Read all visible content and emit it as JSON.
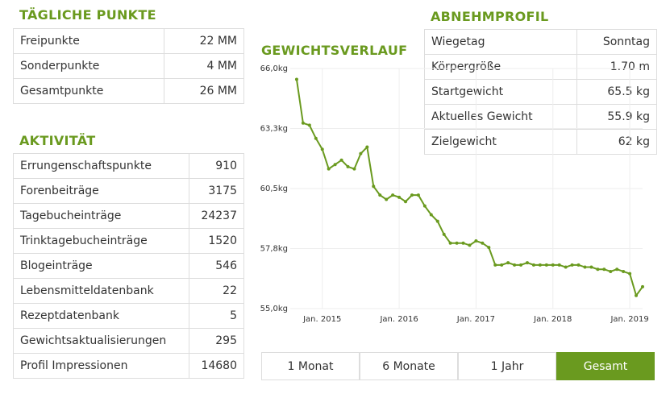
{
  "daily_points": {
    "title": "TÄGLICHE PUNKTE",
    "rows": [
      [
        "Freipunkte",
        "22 MM"
      ],
      [
        "Sonderpunkte",
        "4 MM"
      ],
      [
        "Gesamtpunkte",
        "26 MM"
      ]
    ]
  },
  "activity": {
    "title": "AKTIVITÄT",
    "rows": [
      [
        "Errungenschaftspunkte",
        "910"
      ],
      [
        "Forenbeiträge",
        "3175"
      ],
      [
        "Tagebucheinträge",
        "24237"
      ],
      [
        "Trinktagebucheinträge",
        "1520"
      ],
      [
        "Blogeinträge",
        "546"
      ],
      [
        "Lebensmitteldatenbank",
        "22"
      ],
      [
        "Rezeptdatenbank",
        "5"
      ],
      [
        "Gewichtsaktualisierungen",
        "295"
      ],
      [
        "Profil Impressionen",
        "14680"
      ]
    ]
  },
  "profile": {
    "title": "ABNEHMPROFIL",
    "rows": [
      [
        "Wiegetag",
        "Sonntag"
      ],
      [
        "Körpergröße",
        "1.70 m"
      ],
      [
        "Startgewicht",
        "65.5 kg"
      ],
      [
        "Aktuelles Gewicht",
        "55.9 kg"
      ],
      [
        "Zielgewicht",
        "62 kg"
      ]
    ]
  },
  "chart_data": {
    "type": "line",
    "title": "GEWICHTSVERLAUF",
    "color": "#6a9a1f",
    "grid": true,
    "x": [
      "2014-09",
      "2014-10",
      "2014-11",
      "2014-12",
      "2015-01",
      "2015-02",
      "2015-03",
      "2015-04",
      "2015-05",
      "2015-06",
      "2015-07",
      "2015-08",
      "2015-09",
      "2015-10",
      "2015-11",
      "2015-12",
      "2016-01",
      "2016-02",
      "2016-03",
      "2016-04",
      "2016-05",
      "2016-06",
      "2016-07",
      "2016-08",
      "2016-09",
      "2016-10",
      "2016-11",
      "2016-12",
      "2017-01",
      "2017-02",
      "2017-03",
      "2017-04",
      "2017-05",
      "2017-06",
      "2017-07",
      "2017-08",
      "2017-09",
      "2017-10",
      "2017-11",
      "2017-12",
      "2018-01",
      "2018-02",
      "2018-03",
      "2018-04",
      "2018-05",
      "2018-06",
      "2018-07",
      "2018-08",
      "2018-09",
      "2018-10",
      "2018-11",
      "2018-12",
      "2019-01",
      "2019-02",
      "2019-03"
    ],
    "values": [
      65.5,
      63.5,
      63.4,
      62.8,
      62.3,
      61.4,
      61.6,
      61.8,
      61.5,
      61.4,
      62.1,
      62.4,
      60.6,
      60.2,
      60.0,
      60.2,
      60.1,
      59.9,
      60.2,
      60.2,
      59.7,
      59.3,
      59.0,
      58.4,
      58.0,
      58.0,
      58.0,
      57.9,
      58.1,
      58.0,
      57.8,
      57.0,
      57.0,
      57.1,
      57.0,
      57.0,
      57.1,
      57.0,
      57.0,
      57.0,
      57.0,
      57.0,
      56.9,
      57.0,
      57.0,
      56.9,
      56.9,
      56.8,
      56.8,
      56.7,
      56.8,
      56.7,
      56.6,
      55.6,
      56.0
    ],
    "xlim": [
      "2014-08",
      "2019-03"
    ],
    "xticks": [
      {
        "value": "2015-01",
        "label": "Jan. 2015"
      },
      {
        "value": "2016-01",
        "label": "Jan. 2016"
      },
      {
        "value": "2017-01",
        "label": "Jan. 2017"
      },
      {
        "value": "2018-01",
        "label": "Jan. 2018"
      },
      {
        "value": "2019-01",
        "label": "Jan. 2019"
      }
    ],
    "ylim": [
      55,
      66
    ],
    "yticks": [
      {
        "value": 66,
        "label": "66,0kg"
      },
      {
        "value": 63.25,
        "label": "63,3kg"
      },
      {
        "value": 60.5,
        "label": "60,5kg"
      },
      {
        "value": 57.75,
        "label": "57,8kg"
      },
      {
        "value": 55,
        "label": "55,0kg"
      }
    ]
  },
  "buttons": [
    "1 Monat",
    "6 Monate",
    "1 Jahr",
    "Gesamt"
  ]
}
